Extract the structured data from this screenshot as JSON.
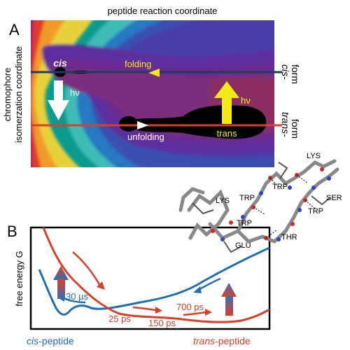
{
  "panel_a": {
    "letter": "A",
    "x_axis_label": "peptide reaction coordinate",
    "y_axis_label_line1": "chromophore",
    "y_axis_label_line2": "isomerzation coordinate",
    "cis_label": "cis",
    "trans_label": "trans",
    "folding_label": "folding",
    "unfolding_label": "unfolding",
    "hv_left": "hν",
    "hv_right": "hν",
    "cis_form_line1": "cis-",
    "cis_form_line2": "form",
    "trans_form_line1": "trans-",
    "trans_form_line2": "form",
    "colors": {
      "cis_line": "#1f3d5c",
      "trans_line": "#d9402a",
      "yellow_arrow": "#f2ea1a"
    }
  },
  "panel_b": {
    "letter": "B",
    "y_axis_label": "free energy G",
    "cis_peptide_word": "cis",
    "peptide_suffix": "-peptide",
    "trans_peptide_word": "trans",
    "times": {
      "t30": "30 µs",
      "t25": "25 ps",
      "t150": "150 ps",
      "t700": "700 ps"
    },
    "colors": {
      "blue_curve": "#1f6fb2",
      "red_curve": "#d9402a"
    }
  },
  "molecule": {
    "residues": {
      "lys_top": "LYS",
      "trp1": "TRP",
      "trp2": "TRP",
      "lys_left": "LYS",
      "ser": "SER",
      "trp3": "TRP",
      "trp4": "TRP",
      "thr": "THR",
      "glu": "GLU"
    }
  }
}
